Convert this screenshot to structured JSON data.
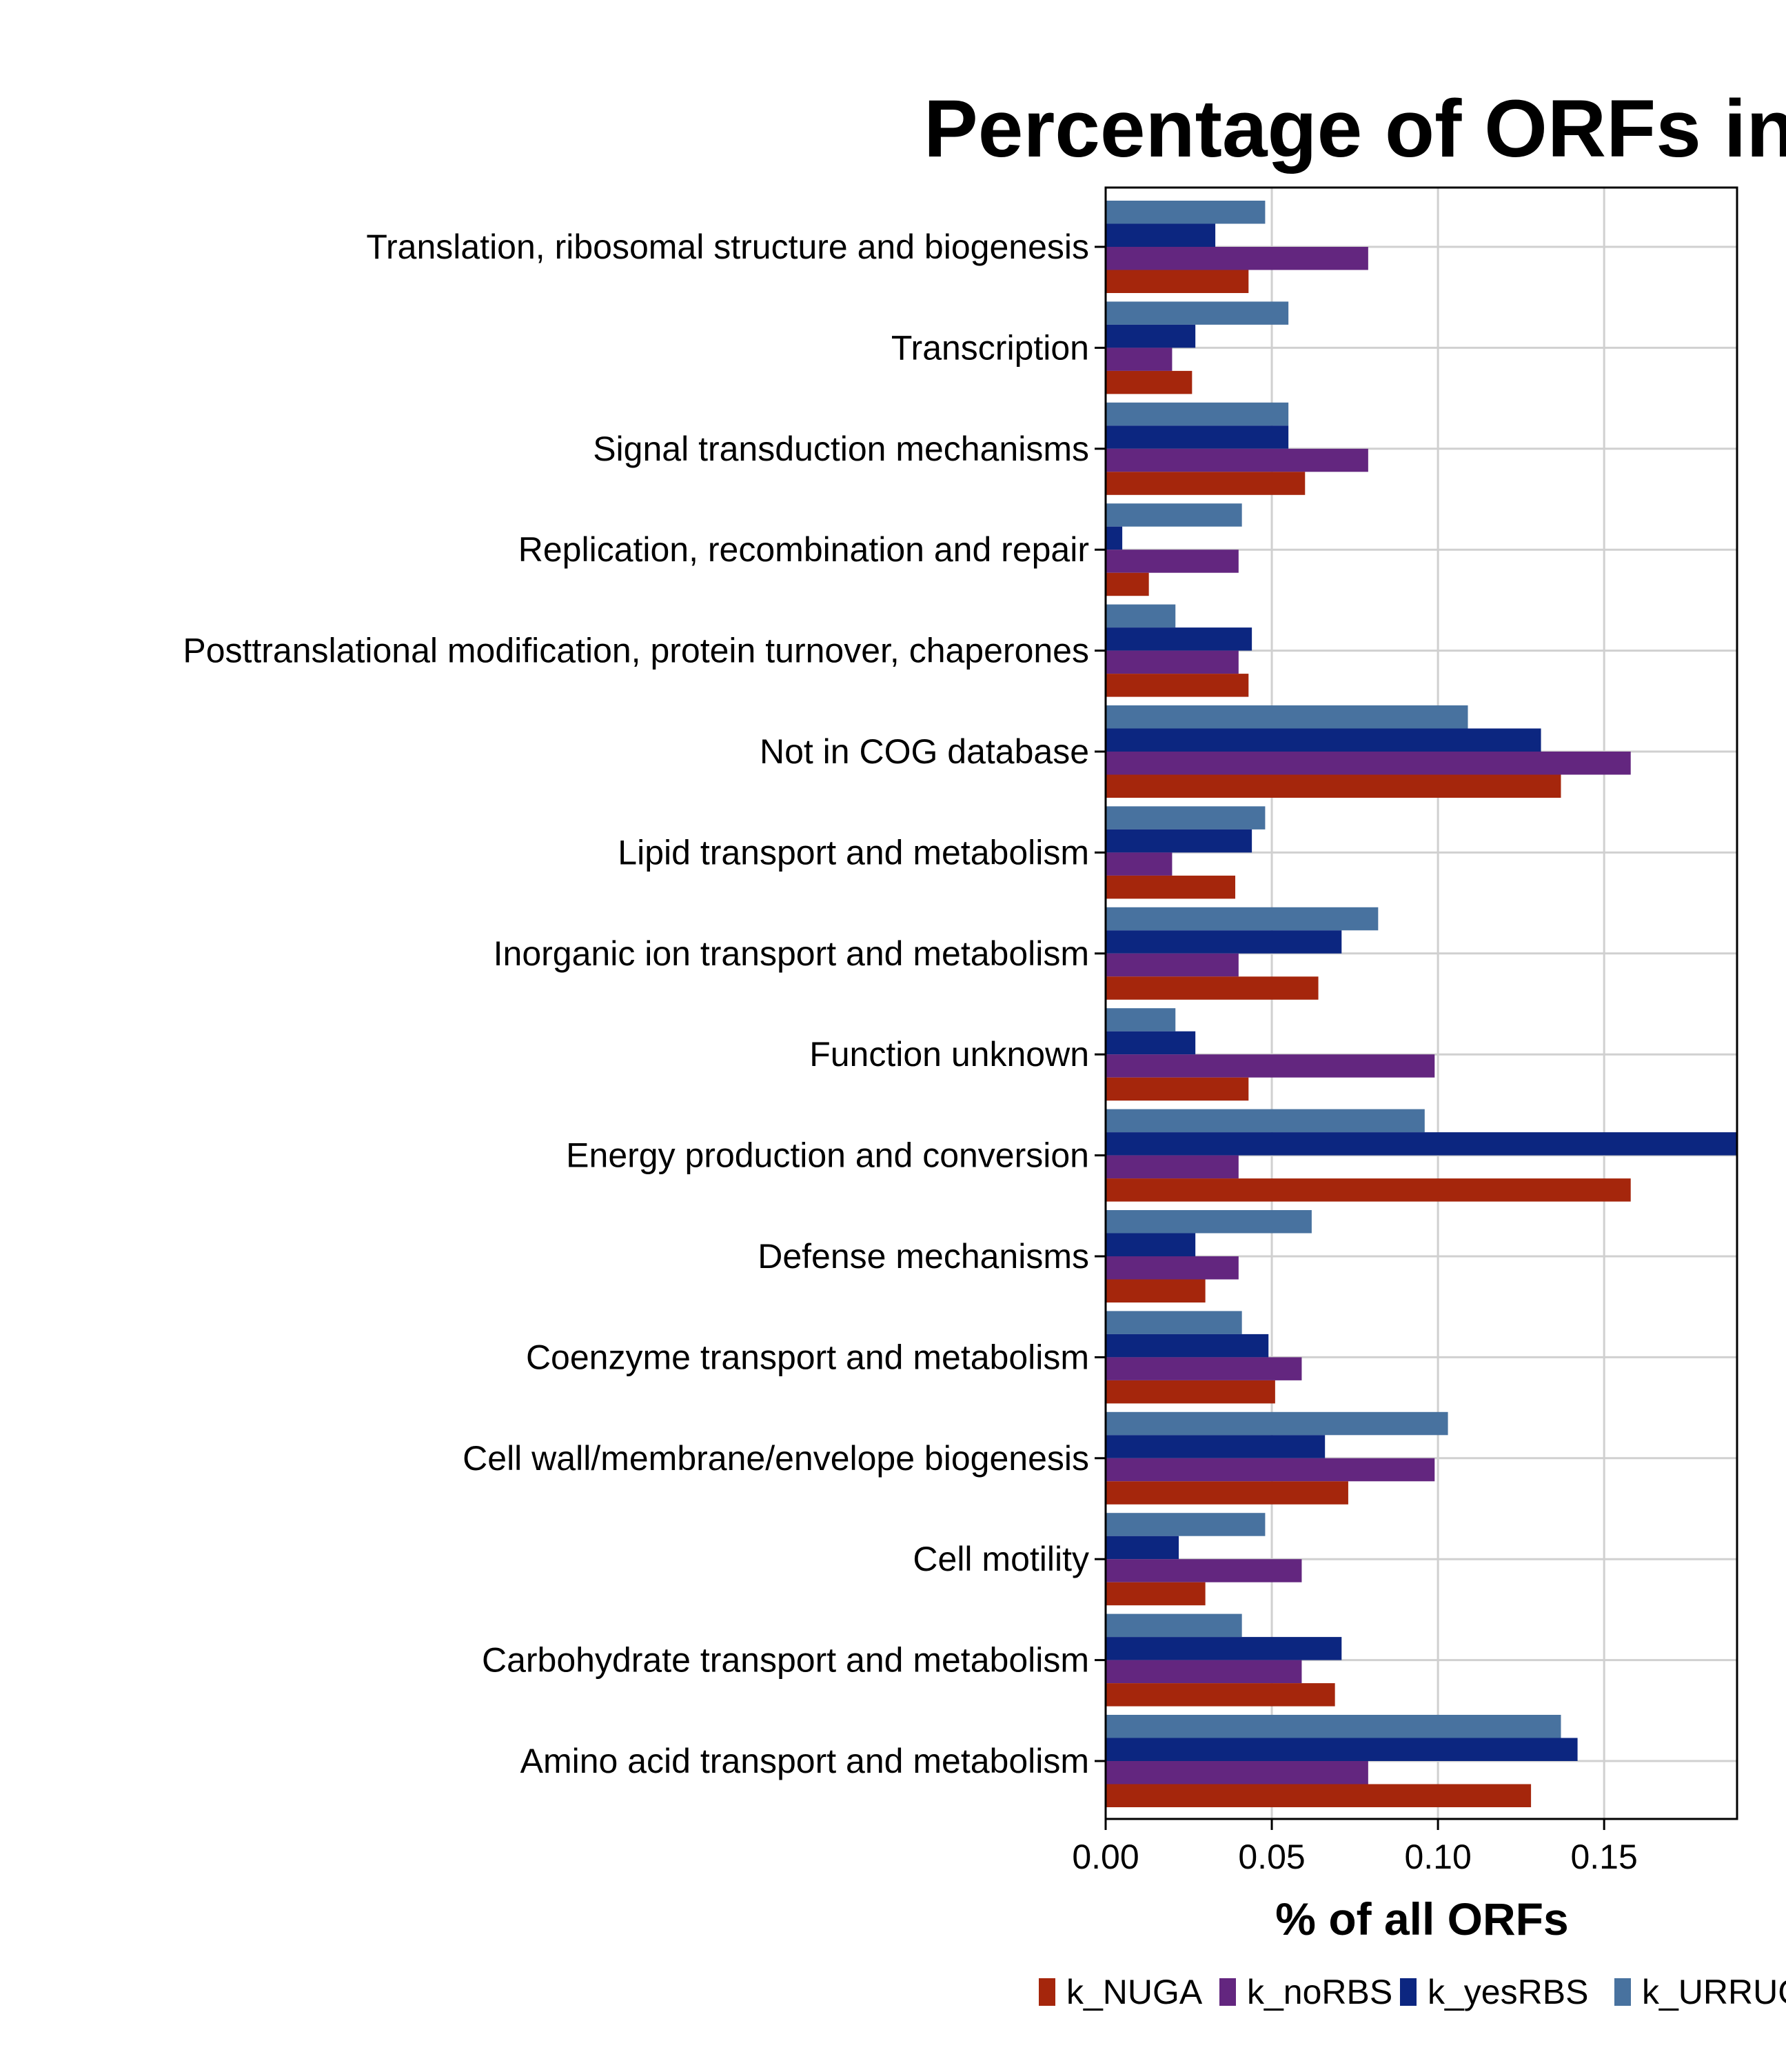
{
  "chart_data": {
    "type": "bar",
    "orientation": "horizontal",
    "title": "Percentage of ORFs in",
    "xlabel": "% of all ORFs",
    "ylabel": "",
    "xlim": [
      0,
      0.19
    ],
    "xticks": [
      "0.00",
      "0.05",
      "0.10",
      "0.15"
    ],
    "grid": true,
    "legend_position": "bottom",
    "categories": [
      "Translation, ribosomal structure and biogenesis",
      "Transcription",
      "Signal transduction mechanisms",
      "Replication, recombination and repair",
      "Posttranslational modification, protein turnover, chaperones",
      "Not in COG database",
      "Lipid transport and metabolism",
      "Inorganic ion transport and metabolism",
      "Function unknown",
      "Energy production and conversion",
      "Defense mechanisms",
      "Coenzyme transport and metabolism",
      "Cell wall/membrane/envelope biogenesis",
      "Cell motility",
      "Carbohydrate transport and metabolism",
      "Amino acid transport and metabolism"
    ],
    "series": [
      {
        "name": "k_NUGA",
        "color": "#a5260c",
        "values": [
          0.043,
          0.026,
          0.06,
          0.013,
          0.043,
          0.137,
          0.039,
          0.064,
          0.043,
          0.158,
          0.03,
          0.051,
          0.073,
          0.03,
          0.069,
          0.128
        ]
      },
      {
        "name": "k_noRBS",
        "color": "#63267f",
        "values": [
          0.079,
          0.02,
          0.079,
          0.04,
          0.04,
          0.158,
          0.02,
          0.04,
          0.099,
          0.04,
          0.04,
          0.059,
          0.099,
          0.059,
          0.059,
          0.079
        ]
      },
      {
        "name": "k_yesRBS",
        "color": "#0c2680",
        "values": [
          0.033,
          0.027,
          0.055,
          0.005,
          0.044,
          0.131,
          0.044,
          0.071,
          0.027,
          0.19,
          0.027,
          0.049,
          0.066,
          0.022,
          0.071,
          0.142
        ]
      },
      {
        "name": "k_URRUG",
        "color": "#48729f",
        "values": [
          0.048,
          0.055,
          0.055,
          0.041,
          0.021,
          0.109,
          0.048,
          0.082,
          0.021,
          0.096,
          0.062,
          0.041,
          0.103,
          0.048,
          0.041,
          0.137
        ]
      }
    ]
  }
}
